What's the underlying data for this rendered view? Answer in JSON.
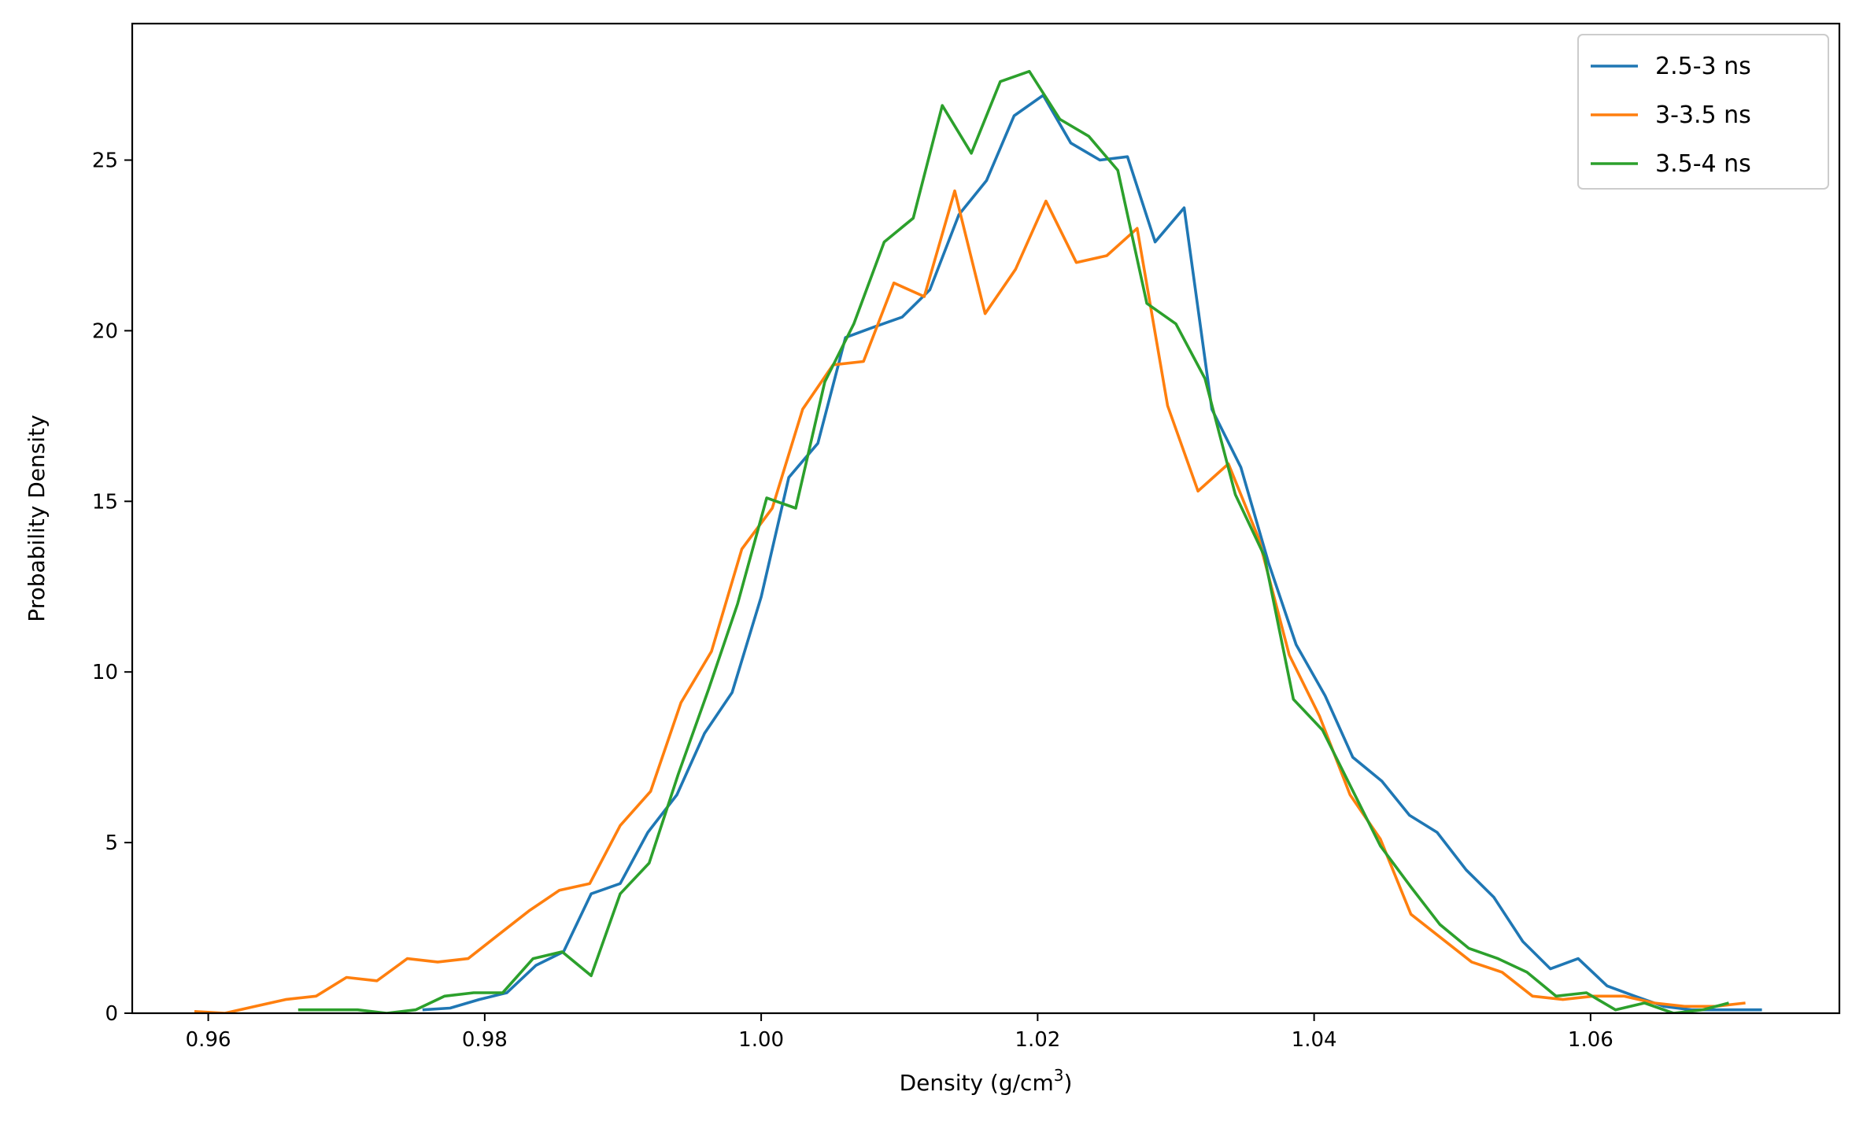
{
  "chart_data": {
    "type": "line",
    "title": "",
    "xlabel_main": "Density (g/cm",
    "xlabel_sup": "3",
    "xlabel_end": ")",
    "ylabel": "Probability Density",
    "xlim": [
      0.9545,
      1.078
    ],
    "ylim": [
      0,
      29
    ],
    "xticks": [
      0.96,
      0.98,
      1.0,
      1.02,
      1.04,
      1.06
    ],
    "xtick_labels": [
      "0.96",
      "0.98",
      "1.00",
      "1.02",
      "1.04",
      "1.06"
    ],
    "yticks": [
      0,
      5,
      10,
      15,
      20,
      25
    ],
    "ytick_labels": [
      "0",
      "5",
      "10",
      "15",
      "20",
      "25"
    ],
    "grid": false,
    "legend_position": "top-right",
    "series": [
      {
        "name": "2.5-3 ns",
        "color": "#1f77b4",
        "x": [
          0.9755,
          0.9775,
          0.9796,
          0.9816,
          0.9837,
          0.9857,
          0.9877,
          0.9898,
          0.9918,
          0.9939,
          0.9959,
          0.9979,
          1.0,
          1.002,
          1.0041,
          1.0061,
          1.0081,
          1.0102,
          1.0122,
          1.0143,
          1.0163,
          1.0183,
          1.0204,
          1.0224,
          1.0245,
          1.0265,
          1.0285,
          1.0306,
          1.0326,
          1.0347,
          1.0367,
          1.0387,
          1.0408,
          1.0428,
          1.0449,
          1.0469,
          1.0489,
          1.051,
          1.053,
          1.0551,
          1.0571,
          1.0591,
          1.0612,
          1.0632,
          1.0653,
          1.0673,
          1.0694,
          1.0724
        ],
        "y": [
          0.1,
          0.15,
          0.4,
          0.6,
          1.4,
          1.8,
          3.5,
          3.8,
          5.3,
          6.4,
          8.2,
          9.4,
          12.2,
          15.7,
          16.7,
          19.8,
          20.1,
          20.4,
          21.2,
          23.4,
          24.4,
          26.3,
          26.9,
          25.5,
          25.0,
          25.1,
          22.6,
          23.6,
          17.7,
          16.0,
          13.2,
          10.8,
          9.3,
          7.5,
          6.8,
          5.8,
          5.3,
          4.2,
          3.4,
          2.1,
          1.3,
          1.6,
          0.8,
          0.5,
          0.2,
          0.1,
          0.1,
          0.1
        ]
      },
      {
        "name": "3-3.5 ns",
        "color": "#ff7f0e",
        "x": [
          0.959,
          0.9612,
          0.9634,
          0.9656,
          0.9678,
          0.97,
          0.9722,
          0.9744,
          0.9766,
          0.9788,
          0.981,
          0.9832,
          0.9854,
          0.9876,
          0.9898,
          0.992,
          0.9942,
          0.9964,
          0.9986,
          1.0008,
          1.003,
          1.0052,
          1.0074,
          1.0096,
          1.0118,
          1.014,
          1.0162,
          1.0184,
          1.0206,
          1.0228,
          1.025,
          1.0272,
          1.0294,
          1.0316,
          1.0338,
          1.036,
          1.0382,
          1.0404,
          1.0426,
          1.0448,
          1.047,
          1.0492,
          1.0514,
          1.0536,
          1.0558,
          1.058,
          1.0602,
          1.0624,
          1.0646,
          1.0668,
          1.069,
          1.0712
        ],
        "y": [
          0.05,
          0.0,
          0.2,
          0.4,
          0.5,
          1.05,
          0.95,
          1.6,
          1.5,
          1.6,
          2.3,
          3.0,
          3.6,
          3.8,
          5.5,
          6.5,
          9.1,
          10.6,
          13.6,
          14.8,
          17.7,
          19.0,
          19.1,
          21.4,
          21.0,
          24.1,
          20.5,
          21.8,
          23.8,
          22.0,
          22.2,
          23.0,
          17.8,
          15.3,
          16.1,
          13.9,
          10.5,
          8.7,
          6.4,
          5.1,
          2.9,
          2.2,
          1.5,
          1.2,
          0.5,
          0.4,
          0.5,
          0.5,
          0.3,
          0.2,
          0.2,
          0.3
        ]
      },
      {
        "name": "3.5-4 ns",
        "color": "#2ca02c",
        "x": [
          0.9665,
          0.9686,
          0.9708,
          0.9729,
          0.975,
          0.9771,
          0.9792,
          0.9813,
          0.9835,
          0.9856,
          0.9877,
          0.9898,
          0.9919,
          0.994,
          0.9962,
          0.9983,
          1.0004,
          1.0025,
          1.0046,
          1.0067,
          1.0089,
          1.011,
          1.0131,
          1.0152,
          1.0173,
          1.0194,
          1.0216,
          1.0237,
          1.0258,
          1.0279,
          1.03,
          1.0321,
          1.0343,
          1.0364,
          1.0385,
          1.0406,
          1.0427,
          1.0448,
          1.047,
          1.0491,
          1.0512,
          1.0533,
          1.0554,
          1.0575,
          1.0597,
          1.0618,
          1.0639,
          1.066,
          1.0681,
          1.07
        ],
        "y": [
          0.1,
          0.1,
          0.1,
          0.0,
          0.1,
          0.5,
          0.6,
          0.6,
          1.6,
          1.8,
          1.1,
          3.5,
          4.4,
          7.0,
          9.5,
          12.0,
          15.1,
          14.8,
          18.5,
          20.2,
          22.6,
          23.3,
          26.6,
          25.2,
          27.3,
          27.6,
          26.2,
          25.7,
          24.7,
          20.8,
          20.2,
          18.6,
          15.2,
          13.4,
          9.2,
          8.3,
          6.6,
          4.9,
          3.7,
          2.6,
          1.9,
          1.6,
          1.2,
          0.5,
          0.6,
          0.1,
          0.3,
          0.0,
          0.1,
          0.3
        ]
      }
    ]
  }
}
